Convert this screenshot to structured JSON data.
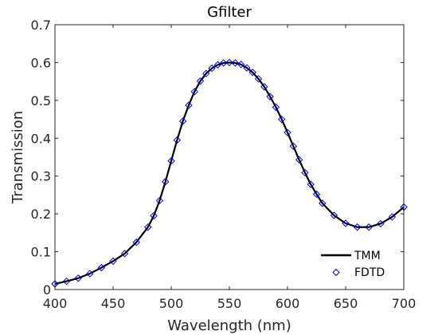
{
  "chart_data": {
    "type": "line",
    "title": "Gfilter",
    "xlabel": "Wavelength (nm)",
    "ylabel": "Transmission",
    "xlim": [
      400,
      700
    ],
    "ylim": [
      0,
      0.7
    ],
    "xticks": [
      "400",
      "450",
      "500",
      "550",
      "600",
      "650",
      "700"
    ],
    "yticks": [
      "0",
      "0.1",
      "0.2",
      "0.3",
      "0.4",
      "0.5",
      "0.6",
      "0.7"
    ],
    "grid": false,
    "legend_position": "bottom-right",
    "series": [
      {
        "name": "TMM",
        "style": "line",
        "color": "#000000",
        "x": [
          400,
          410,
          420,
          430,
          440,
          450,
          460,
          470,
          480,
          485,
          490,
          495,
          500,
          505,
          510,
          515,
          520,
          525,
          530,
          535,
          540,
          545,
          550,
          555,
          560,
          565,
          570,
          575,
          580,
          585,
          590,
          595,
          600,
          605,
          610,
          615,
          620,
          625,
          630,
          640,
          650,
          660,
          670,
          680,
          690,
          700
        ],
        "y": [
          0.015,
          0.022,
          0.03,
          0.042,
          0.058,
          0.075,
          0.095,
          0.125,
          0.165,
          0.195,
          0.235,
          0.285,
          0.34,
          0.395,
          0.445,
          0.487,
          0.523,
          0.551,
          0.571,
          0.585,
          0.594,
          0.599,
          0.6,
          0.599,
          0.595,
          0.586,
          0.574,
          0.557,
          0.536,
          0.51,
          0.482,
          0.45,
          0.415,
          0.379,
          0.343,
          0.309,
          0.278,
          0.252,
          0.228,
          0.196,
          0.175,
          0.165,
          0.165,
          0.174,
          0.192,
          0.218
        ]
      },
      {
        "name": "FDTD",
        "style": "markers",
        "marker": "diamond",
        "color": "#0000cc",
        "x": [
          400,
          410,
          420,
          430,
          440,
          450,
          460,
          470,
          480,
          485,
          490,
          495,
          500,
          505,
          510,
          515,
          520,
          525,
          530,
          535,
          540,
          545,
          550,
          555,
          560,
          565,
          570,
          575,
          580,
          585,
          590,
          595,
          600,
          605,
          610,
          615,
          620,
          625,
          630,
          640,
          650,
          660,
          670,
          680,
          690,
          700
        ],
        "y": [
          0.015,
          0.022,
          0.03,
          0.042,
          0.058,
          0.075,
          0.095,
          0.125,
          0.165,
          0.195,
          0.235,
          0.285,
          0.34,
          0.395,
          0.445,
          0.487,
          0.523,
          0.551,
          0.571,
          0.585,
          0.594,
          0.599,
          0.6,
          0.599,
          0.595,
          0.586,
          0.574,
          0.557,
          0.536,
          0.51,
          0.482,
          0.45,
          0.415,
          0.379,
          0.343,
          0.309,
          0.278,
          0.252,
          0.228,
          0.196,
          0.175,
          0.165,
          0.165,
          0.174,
          0.192,
          0.218
        ]
      }
    ]
  }
}
